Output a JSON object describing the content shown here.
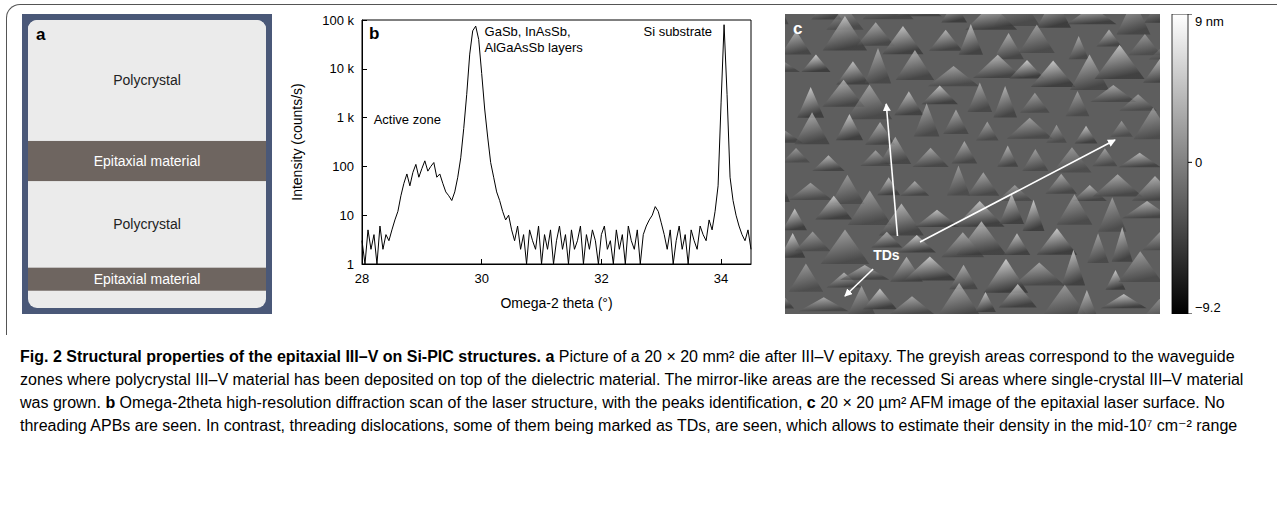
{
  "panels": {
    "a": {
      "letter": "a",
      "regions": [
        "Polycrystal",
        "Epitaxial material",
        "Polycrystal",
        "Epitaxial material"
      ]
    },
    "b": {
      "letter": "b"
    },
    "c": {
      "letter": "c",
      "annotation": "TDs",
      "colorbar": {
        "range": [
          -9.2,
          9
        ],
        "ticks": [
          {
            "value": 9,
            "label": "9 nm"
          },
          0,
          {
            "value": -9.2,
            "label": "−9.2"
          }
        ]
      }
    }
  },
  "chart_data": {
    "type": "line",
    "xlabel": "Omega-2 theta (°)",
    "ylabel": "Intensity (counts/s)",
    "annotations": [
      "Active zone",
      "GaSb, InAsSb, AlGaAsSb layers",
      "Si substrate"
    ],
    "x": [
      28,
      28.05,
      28.1,
      28.15,
      28.2,
      28.25,
      28.3,
      28.35,
      28.4,
      28.45,
      28.5,
      28.55,
      28.6,
      28.65,
      28.7,
      28.75,
      28.8,
      28.85,
      28.9,
      28.95,
      29,
      29.05,
      29.1,
      29.15,
      29.2,
      29.25,
      29.3,
      29.35,
      29.4,
      29.45,
      29.5,
      29.55,
      29.6,
      29.65,
      29.7,
      29.75,
      29.8,
      29.85,
      29.9,
      29.95,
      30,
      30.05,
      30.1,
      30.15,
      30.2,
      30.25,
      30.3,
      30.35,
      30.4,
      30.45,
      30.5,
      30.55,
      30.6,
      30.65,
      30.7,
      30.75,
      30.8,
      30.85,
      30.9,
      30.95,
      31,
      31.05,
      31.1,
      31.15,
      31.2,
      31.25,
      31.3,
      31.35,
      31.4,
      31.45,
      31.5,
      31.55,
      31.6,
      31.65,
      31.7,
      31.75,
      31.8,
      31.85,
      31.9,
      31.95,
      32,
      32.05,
      32.1,
      32.15,
      32.2,
      32.25,
      32.3,
      32.35,
      32.4,
      32.45,
      32.5,
      32.55,
      32.6,
      32.65,
      32.7,
      32.75,
      32.8,
      32.85,
      32.9,
      32.95,
      33,
      33.05,
      33.1,
      33.15,
      33.2,
      33.25,
      33.3,
      33.35,
      33.4,
      33.45,
      33.5,
      33.55,
      33.6,
      33.65,
      33.7,
      33.75,
      33.8,
      33.85,
      33.9,
      33.95,
      34,
      34.05,
      34.1,
      34.15,
      34.2,
      34.25,
      34.3,
      34.35,
      34.4,
      34.45,
      34.5
    ],
    "values": [
      3,
      1,
      5,
      2,
      4,
      1,
      6,
      2,
      4,
      3,
      5,
      8,
      12,
      25,
      45,
      70,
      40,
      75,
      110,
      60,
      90,
      130,
      80,
      100,
      120,
      60,
      70,
      45,
      30,
      25,
      20,
      30,
      60,
      150,
      600,
      3000,
      20000,
      60000,
      75000,
      40000,
      8000,
      1500,
      400,
      120,
      60,
      30,
      20,
      12,
      8,
      10,
      5,
      3,
      6,
      2,
      4,
      1,
      5,
      3,
      2,
      6,
      1,
      4,
      2,
      5,
      1,
      3,
      6,
      2,
      4,
      1,
      5,
      2,
      3,
      6,
      1,
      4,
      2,
      5,
      3,
      1,
      4,
      6,
      2,
      3,
      1,
      5,
      2,
      4,
      1,
      6,
      3,
      2,
      5,
      1,
      4,
      6,
      8,
      10,
      15,
      12,
      7,
      4,
      2,
      5,
      1,
      3,
      6,
      2,
      4,
      1,
      5,
      3,
      2,
      6,
      4,
      3,
      8,
      5,
      12,
      40,
      2000,
      80000,
      3000,
      60,
      20,
      10,
      6,
      4,
      3,
      5,
      2
    ],
    "color": "#000000",
    "log": "y",
    "grid": false,
    "xlim": [
      28,
      34.5
    ],
    "xticks": [
      28,
      30,
      32,
      34
    ],
    "ylim": [
      1,
      100000
    ],
    "yticks": [
      1,
      10,
      100,
      {
        "value": 1000,
        "label": "1 k"
      },
      {
        "value": 10000,
        "label": "10 k"
      },
      {
        "value": 100000,
        "label": "100 k"
      }
    ]
  },
  "caption": {
    "title": "Fig. 2 Structural properties of the epitaxial III–V on Si-PIC structures.",
    "parts": [
      {
        "label": "a",
        "text": "Picture of a 20 × 20 mm² die after III–V epitaxy. The greyish areas correspond to the waveguide zones where polycrystal III–V material has been deposited on top of the dielectric material. The mirror-like areas are the recessed Si areas where single-crystal III–V material was grown."
      },
      {
        "label": "b",
        "text": "Omega-2theta high-resolution diffraction scan of the laser structure, with the peaks identification,"
      },
      {
        "label": "c",
        "text": "20 × 20 µm² AFM image of the epitaxial laser surface. No threading APBs are seen. In contrast, threading dislocations, some of them being marked as TDs, are seen, which allows to estimate their density in the mid-10⁷ cm⁻² range"
      }
    ]
  }
}
